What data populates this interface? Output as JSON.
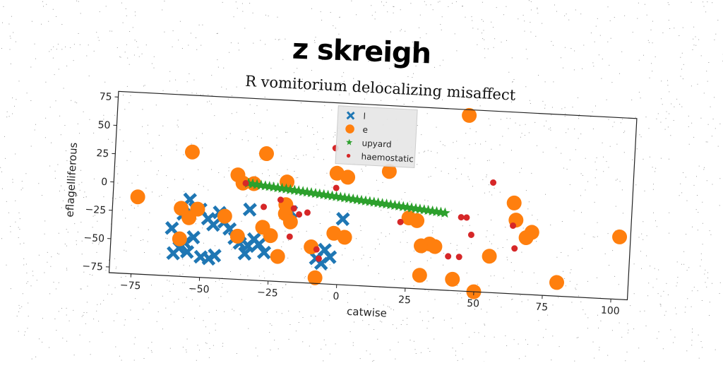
{
  "suptitle": "z skreigh",
  "chart_data": {
    "type": "scatter",
    "title": "R vomitorium delocalizing misaffect",
    "xlabel": "catwise",
    "ylabel": "eflagelliferous",
    "xlim": [
      -83,
      106
    ],
    "ylim": [
      -80,
      80
    ],
    "xticks": [
      -75,
      -50,
      -25,
      0,
      25,
      50,
      75,
      100
    ],
    "yticks": [
      75,
      50,
      25,
      0,
      -25,
      -50,
      -75
    ],
    "grid": false,
    "legend_position": "top-center",
    "series": [
      {
        "name": "l",
        "marker": "x",
        "color": "#1f77b4",
        "points": [
          [
            -55,
            -12
          ],
          [
            -53,
            -20
          ],
          [
            -57,
            -25
          ],
          [
            -51,
            -20
          ],
          [
            -61,
            -38
          ],
          [
            -48,
            -28
          ],
          [
            -46,
            -33
          ],
          [
            -44,
            -22
          ],
          [
            -42,
            -30
          ],
          [
            -40,
            -36
          ],
          [
            -38,
            -44
          ],
          [
            -56,
            -50
          ],
          [
            -58,
            -55
          ],
          [
            -60,
            -60
          ],
          [
            -55,
            -58
          ],
          [
            -50,
            -62
          ],
          [
            -47,
            -63
          ],
          [
            -45,
            -60
          ],
          [
            -36,
            -48
          ],
          [
            -33,
            -50
          ],
          [
            -31,
            -44
          ],
          [
            -29,
            -48
          ],
          [
            -27,
            -55
          ],
          [
            -34,
            -57
          ],
          [
            -33,
            -18
          ],
          [
            -18,
            -18
          ],
          [
            -8,
            -58
          ],
          [
            -6,
            -62
          ],
          [
            -5,
            -50
          ],
          [
            -3,
            -56
          ],
          [
            1,
            -22
          ],
          [
            -53,
            -45
          ]
        ]
      },
      {
        "name": "e",
        "marker": "o",
        "color": "#ff7f0e",
        "points": [
          [
            -74,
            -12
          ],
          [
            -55,
            30
          ],
          [
            -55,
            -28
          ],
          [
            -58,
            -20
          ],
          [
            -52,
            -20
          ],
          [
            -58,
            -47
          ],
          [
            -38,
            12
          ],
          [
            -36,
            5
          ],
          [
            -32,
            5
          ],
          [
            -28,
            32
          ],
          [
            -20,
            8
          ],
          [
            -20,
            -12
          ],
          [
            -20,
            -20
          ],
          [
            -18,
            -27
          ],
          [
            -25,
            -40
          ],
          [
            -28,
            -33
          ],
          [
            -37,
            -42
          ],
          [
            -10,
            -48
          ],
          [
            -22,
            -58
          ],
          [
            -2,
            18
          ],
          [
            2,
            15
          ],
          [
            -2,
            -35
          ],
          [
            2,
            -38
          ],
          [
            17,
            22
          ],
          [
            25,
            -18
          ],
          [
            28,
            -20
          ],
          [
            30,
            -42
          ],
          [
            33,
            -40
          ],
          [
            35,
            -42
          ],
          [
            30,
            -68
          ],
          [
            45,
            75
          ],
          [
            42,
            -70
          ],
          [
            50,
            -80
          ],
          [
            55,
            -48
          ],
          [
            63,
            0
          ],
          [
            64,
            -15
          ],
          [
            68,
            -30
          ],
          [
            70,
            -25
          ],
          [
            80,
            -68
          ],
          [
            102,
            -25
          ],
          [
            -8,
            -75
          ],
          [
            -42,
            -25
          ]
        ]
      },
      {
        "name": "upyard",
        "marker": "*",
        "color": "#2ca02c",
        "line": [
          [
            -34,
            5
          ],
          [
            38,
            -12
          ]
        ],
        "count": 48
      },
      {
        "name": "haemostatic",
        "marker": ".",
        "color": "#d62728",
        "points": [
          [
            -3,
            40
          ],
          [
            -2,
            5
          ],
          [
            -35,
            5
          ],
          [
            -28,
            -15
          ],
          [
            -22,
            -8
          ],
          [
            -17,
            -15
          ],
          [
            -15,
            -20
          ],
          [
            -12,
            -18
          ],
          [
            -18,
            -40
          ],
          [
            -8,
            -50
          ],
          [
            -7,
            -58
          ],
          [
            22,
            -22
          ],
          [
            44,
            -15
          ],
          [
            46,
            -15
          ],
          [
            40,
            -50
          ],
          [
            44,
            -50
          ],
          [
            48,
            -30
          ],
          [
            55,
            17
          ],
          [
            63,
            -20
          ],
          [
            64,
            -40
          ]
        ]
      }
    ]
  }
}
